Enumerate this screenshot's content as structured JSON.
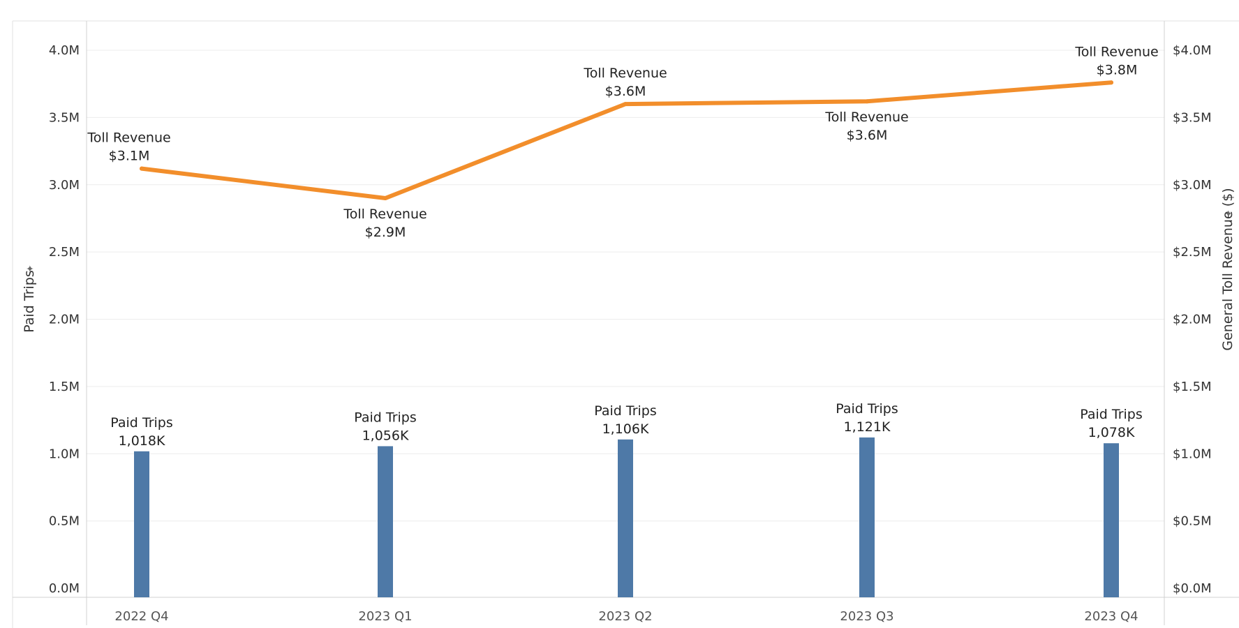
{
  "chart_data": {
    "type": "bar",
    "categories": [
      "2022 Q4",
      "2023 Q1",
      "2023 Q2",
      "2023 Q3",
      "2023 Q4"
    ],
    "series": [
      {
        "name": "Paid Trips",
        "type": "bar",
        "axis": "left",
        "color": "#4e79a7",
        "values": [
          1018000,
          1056000,
          1106000,
          1121000,
          1078000
        ],
        "labels": [
          "1,018K",
          "1,056K",
          "1,106K",
          "1,121K",
          "1,078K"
        ]
      },
      {
        "name": "Toll Revenue",
        "type": "line",
        "axis": "right",
        "color": "#f28e2b",
        "values": [
          3.12,
          2.9,
          3.6,
          3.62,
          3.76
        ],
        "labels": [
          "$3.1M",
          "$2.9M",
          "$3.6M",
          "$3.6M",
          "$3.8M"
        ]
      }
    ],
    "left_axis": {
      "title": "Paid Trips",
      "range": [
        0,
        4000000
      ],
      "ticks": [
        "0.0M",
        "0.5M",
        "1.0M",
        "1.5M",
        "2.0M",
        "2.5M",
        "3.0M",
        "3.5M",
        "4.0M"
      ],
      "tick_values": [
        0,
        500000,
        1000000,
        1500000,
        2000000,
        2500000,
        3000000,
        3500000,
        4000000
      ]
    },
    "right_axis": {
      "title": "General Toll Revenue ($)",
      "range": [
        0,
        4
      ],
      "ticks": [
        "$0.0M",
        "$0.5M",
        "$1.0M",
        "$1.5M",
        "$2.0M",
        "$2.5M",
        "$3.0M",
        "$3.5M",
        "$4.0M"
      ],
      "tick_values": [
        0,
        0.5,
        1,
        1.5,
        2,
        2.5,
        3,
        3.5,
        4
      ]
    },
    "grid": true,
    "gridline_color": "#ececec",
    "axis_line_color": "#d0d0d0"
  }
}
